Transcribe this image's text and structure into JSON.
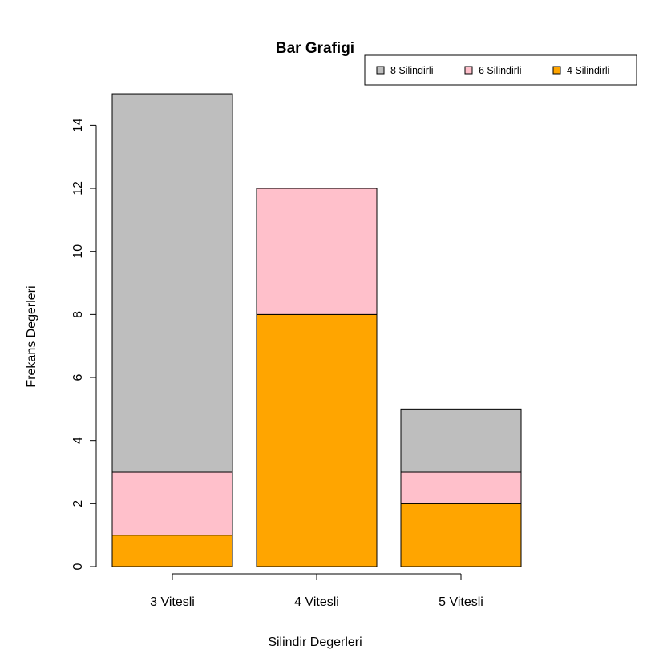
{
  "chart_data": {
    "type": "bar",
    "stacked": true,
    "title": "Bar Grafigi",
    "xlabel": "Silindir Degerleri",
    "ylabel": "Frekans Degerleri",
    "categories": [
      "3 Vitesli",
      "4 Vitesli",
      "5 Vitesli"
    ],
    "series": [
      {
        "name": "4 Silindirli",
        "color": "#FFA500",
        "values": [
          1,
          8,
          2
        ]
      },
      {
        "name": "6 Silindirli",
        "color": "#FFC0CB",
        "values": [
          2,
          4,
          1
        ]
      },
      {
        "name": "8 Silindirli",
        "color": "#BEBEBE",
        "values": [
          12,
          0,
          2
        ]
      }
    ],
    "legend_order": [
      "8 Silindirli",
      "6 Silindirli",
      "4 Silindirli"
    ],
    "yticks": [
      0,
      2,
      4,
      6,
      8,
      10,
      12,
      14
    ],
    "ylim": [
      0,
      15
    ],
    "grid": false,
    "legend_position": "top-right"
  }
}
